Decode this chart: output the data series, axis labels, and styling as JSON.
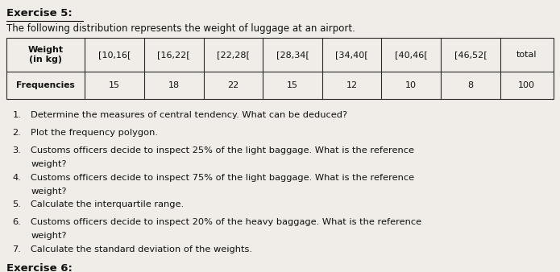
{
  "title_bold": "Exercise 5:",
  "subtitle": "The following distribution represents the weight of luggage at an airport.",
  "table": {
    "col_headers": [
      "Weight\n(in kg)",
      "[10,16[",
      "[16,22[",
      "[22,28[",
      "[28,34[",
      "[34,40[",
      "[40,46[",
      "[46,52[",
      "total"
    ],
    "row_label": "Frequencies",
    "frequencies": [
      15,
      18,
      22,
      15,
      12,
      10,
      8,
      100
    ]
  },
  "questions": [
    {
      "num": "1.",
      "text": "Determine the measures of central tendency. What can be deduced?",
      "wrap": false
    },
    {
      "num": "2.",
      "text": "Plot the frequency polygon.",
      "wrap": false
    },
    {
      "num": "3.",
      "text": "Customs officers decide to inspect 25% of the light baggage. What is the reference",
      "cont": "weight?",
      "wrap": true
    },
    {
      "num": "4.",
      "text": "Customs officers decide to inspect 75% of the light baggage. What is the reference",
      "cont": "weight?",
      "wrap": true
    },
    {
      "num": "5.",
      "text": "Calculate the interquartile range.",
      "wrap": false
    },
    {
      "num": "6.",
      "text": "Customs officers decide to inspect 20% of the heavy baggage. What is the reference",
      "cont": "weight?",
      "wrap": true
    },
    {
      "num": "7.",
      "text": "Calculate the standard deviation of the weights.",
      "wrap": false
    }
  ],
  "footer_bold": "Exercise 6:",
  "bg_color": "#f0ede8",
  "table_line_color": "#2a2a2a",
  "text_color": "#111111",
  "font_size_title": 9.5,
  "font_size_subtitle": 8.5,
  "font_size_table": 8.0,
  "font_size_questions": 8.2,
  "font_size_footer": 9.5
}
